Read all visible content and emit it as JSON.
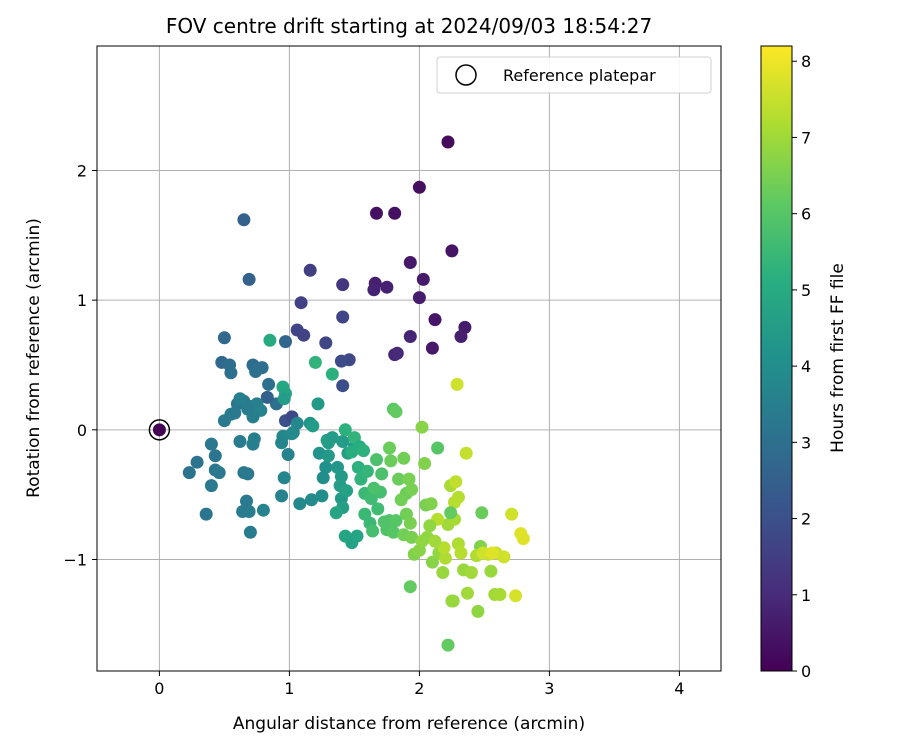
{
  "chart_data": {
    "type": "scatter",
    "title": "FOV centre drift starting at 2024/09/03 18:54:27",
    "xlabel": "Angular distance from reference (arcmin)",
    "ylabel": "Rotation from reference (arcmin)",
    "xlim": [
      -0.48,
      4.32
    ],
    "ylim": [
      -1.86,
      2.96
    ],
    "xticks": [
      0,
      1,
      2,
      3,
      4
    ],
    "yticks": [
      -1,
      0,
      1,
      2
    ],
    "grid": true,
    "legend": {
      "placement": "top-right",
      "entries": [
        "Reference platepar"
      ]
    },
    "reference_point": {
      "x": 0,
      "y": 0
    },
    "colorbar": {
      "label": "Hours from first FF file",
      "colormap": "viridis",
      "min": 0,
      "max": 8.2,
      "ticks": [
        0,
        1,
        2,
        3,
        4,
        5,
        6,
        7,
        8
      ]
    },
    "points": [
      [
        2.22,
        2.22,
        0.25
      ],
      [
        2.0,
        1.87,
        0.3
      ],
      [
        1.67,
        1.67,
        0.4
      ],
      [
        1.81,
        1.67,
        0.35
      ],
      [
        2.25,
        1.38,
        0.45
      ],
      [
        1.93,
        1.29,
        0.55
      ],
      [
        2.03,
        1.16,
        0.6
      ],
      [
        1.66,
        1.13,
        0.7
      ],
      [
        1.75,
        1.1,
        0.75
      ],
      [
        1.65,
        1.08,
        0.8
      ],
      [
        2.0,
        1.02,
        0.65
      ],
      [
        2.12,
        0.85,
        0.5
      ],
      [
        2.35,
        0.79,
        0.65
      ],
      [
        2.32,
        0.72,
        0.7
      ],
      [
        1.93,
        0.72,
        0.85
      ],
      [
        2.1,
        0.63,
        0.55
      ],
      [
        1.81,
        0.58,
        0.9
      ],
      [
        1.83,
        0.59,
        0.95
      ],
      [
        1.41,
        1.12,
        1.3
      ],
      [
        1.16,
        1.23,
        1.5
      ],
      [
        1.09,
        0.98,
        1.6
      ],
      [
        1.06,
        0.77,
        1.7
      ],
      [
        1.11,
        0.73,
        1.65
      ],
      [
        1.41,
        0.87,
        1.7
      ],
      [
        1.28,
        0.67,
        1.75
      ],
      [
        1.46,
        0.54,
        1.8
      ],
      [
        1.4,
        0.53,
        1.85
      ],
      [
        1.41,
        0.34,
        1.95
      ],
      [
        0.65,
        1.62,
        2.5
      ],
      [
        0.69,
        1.16,
        2.6
      ],
      [
        0.5,
        0.71,
        2.8
      ],
      [
        0.97,
        0.68,
        2.7
      ],
      [
        0.48,
        0.52,
        2.8
      ],
      [
        0.54,
        0.5,
        2.9
      ],
      [
        0.72,
        0.5,
        2.9
      ],
      [
        0.79,
        0.48,
        2.95
      ],
      [
        0.55,
        0.44,
        3.0
      ],
      [
        0.74,
        0.45,
        3.0
      ],
      [
        0.84,
        0.35,
        3.0
      ],
      [
        0.9,
        0.2,
        3.0
      ],
      [
        0.83,
        0.25,
        2.5
      ],
      [
        0.6,
        0.2,
        3.2
      ],
      [
        0.65,
        0.22,
        3.3
      ],
      [
        0.7,
        0.18,
        3.4
      ],
      [
        0.75,
        0.2,
        3.5
      ],
      [
        0.78,
        0.15,
        3.6
      ],
      [
        0.72,
        0.1,
        3.5
      ],
      [
        0.55,
        0.12,
        3.4
      ],
      [
        0.5,
        0.07,
        3.3
      ],
      [
        0.58,
        0.13,
        3.3
      ],
      [
        0.68,
        0.16,
        3.4
      ],
      [
        0.62,
        0.24,
        3.5
      ],
      [
        0.97,
        0.07,
        2.0
      ],
      [
        1.02,
        0.1,
        1.8
      ],
      [
        0.95,
        0.33,
        4.9
      ],
      [
        0.97,
        0.28,
        4.8
      ],
      [
        0.96,
        0.24,
        4.5
      ],
      [
        0.85,
        0.69,
        5.0
      ],
      [
        1.2,
        0.52,
        5.3
      ],
      [
        1.33,
        0.43,
        5.2
      ],
      [
        1.22,
        0.2,
        4.4
      ],
      [
        1.16,
        0.05,
        4.2
      ],
      [
        1.18,
        0.03,
        4.5
      ],
      [
        1.06,
        0.05,
        3.8
      ],
      [
        1.03,
        -0.02,
        3.7
      ],
      [
        1.02,
        -0.03,
        3.9
      ],
      [
        0.95,
        -0.05,
        3.8
      ],
      [
        0.94,
        -0.1,
        3.7
      ],
      [
        0.99,
        -0.19,
        3.6
      ],
      [
        0.96,
        -0.37,
        3.7
      ],
      [
        0.94,
        -0.51,
        3.6
      ],
      [
        0.73,
        -0.07,
        3.5
      ],
      [
        0.72,
        -0.11,
        3.5
      ],
      [
        0.62,
        -0.09,
        3.4
      ],
      [
        0.4,
        -0.11,
        3.3
      ],
      [
        0.43,
        -0.2,
        3.2
      ],
      [
        0.43,
        -0.31,
        3.2
      ],
      [
        0.46,
        -0.33,
        3.3
      ],
      [
        0.4,
        -0.43,
        3.3
      ],
      [
        0.23,
        -0.33,
        3.1
      ],
      [
        0.29,
        -0.25,
        3.1
      ],
      [
        0.36,
        -0.65,
        3.2
      ],
      [
        0.65,
        -0.33,
        3.3
      ],
      [
        0.68,
        -0.34,
        3.3
      ],
      [
        0.67,
        -0.55,
        3.3
      ],
      [
        0.64,
        -0.63,
        3.4
      ],
      [
        0.69,
        -0.63,
        3.4
      ],
      [
        0.7,
        -0.79,
        3.4
      ],
      [
        0.8,
        -0.62,
        3.6
      ],
      [
        1.08,
        -0.57,
        3.8
      ],
      [
        1.17,
        -0.54,
        3.9
      ],
      [
        1.25,
        -0.51,
        4.0
      ],
      [
        1.28,
        -0.29,
        4.1
      ],
      [
        1.26,
        -0.37,
        4.0
      ],
      [
        1.23,
        -0.18,
        4.2
      ],
      [
        1.3,
        -0.2,
        4.4
      ],
      [
        1.3,
        -0.1,
        4.5
      ],
      [
        1.29,
        -0.08,
        4.6
      ],
      [
        1.33,
        -0.06,
        4.5
      ],
      [
        1.37,
        -0.29,
        4.3
      ],
      [
        1.4,
        -0.36,
        4.4
      ],
      [
        1.39,
        -0.43,
        4.5
      ],
      [
        1.4,
        -0.53,
        4.4
      ],
      [
        1.41,
        -0.6,
        4.6
      ],
      [
        1.44,
        -0.47,
        4.7
      ],
      [
        1.36,
        -0.64,
        4.8
      ],
      [
        1.43,
        -0.82,
        4.8
      ],
      [
        1.48,
        -0.87,
        4.7
      ],
      [
        1.52,
        -0.82,
        4.8
      ],
      [
        1.45,
        -0.18,
        4.6
      ],
      [
        1.5,
        -0.13,
        4.5
      ],
      [
        1.41,
        -0.09,
        4.5
      ],
      [
        1.43,
        -0.0,
        5.2
      ],
      [
        1.5,
        -0.06,
        5.3
      ],
      [
        1.54,
        -0.13,
        5.1
      ],
      [
        1.48,
        -0.17,
        5.1
      ],
      [
        1.57,
        -0.16,
        5.2
      ],
      [
        1.53,
        -0.29,
        5.2
      ],
      [
        1.55,
        -0.38,
        5.3
      ],
      [
        1.6,
        -0.32,
        5.4
      ],
      [
        1.58,
        -0.49,
        5.5
      ],
      [
        1.63,
        -0.53,
        5.6
      ],
      [
        1.58,
        -0.65,
        5.5
      ],
      [
        1.62,
        -0.72,
        5.5
      ],
      [
        1.64,
        -0.78,
        5.7
      ],
      [
        1.68,
        -0.61,
        5.6
      ],
      [
        1.7,
        -0.48,
        5.7
      ],
      [
        1.65,
        -0.45,
        5.8
      ],
      [
        1.71,
        -0.34,
        5.8
      ],
      [
        1.67,
        -0.23,
        5.8
      ],
      [
        1.73,
        -0.71,
        5.9
      ],
      [
        1.75,
        -0.77,
        5.9
      ],
      [
        1.77,
        -0.7,
        5.9
      ],
      [
        1.8,
        -0.79,
        6.0
      ],
      [
        1.82,
        -0.7,
        6.0
      ],
      [
        1.8,
        0.16,
        6.1
      ],
      [
        1.82,
        0.14,
        6.2
      ],
      [
        1.77,
        -0.14,
        6.3
      ],
      [
        1.78,
        -0.24,
        6.3
      ],
      [
        1.84,
        -0.38,
        6.3
      ],
      [
        1.88,
        -0.22,
        6.4
      ],
      [
        1.9,
        -0.49,
        6.3
      ],
      [
        1.86,
        -0.54,
        6.4
      ],
      [
        1.92,
        -0.38,
        6.5
      ],
      [
        1.94,
        -0.46,
        6.5
      ],
      [
        1.9,
        -0.65,
        6.4
      ],
      [
        1.93,
        -0.72,
        6.5
      ],
      [
        1.88,
        -0.81,
        6.4
      ],
      [
        1.94,
        -0.83,
        6.5
      ],
      [
        1.96,
        -0.96,
        6.6
      ],
      [
        2.0,
        -0.93,
        6.7
      ],
      [
        2.02,
        -0.86,
        6.8
      ],
      [
        2.06,
        -0.83,
        6.8
      ],
      [
        2.05,
        -0.58,
        6.5
      ],
      [
        2.09,
        -0.57,
        6.6
      ],
      [
        2.1,
        -1.02,
        6.7
      ],
      [
        2.15,
        -0.95,
        6.8
      ],
      [
        2.18,
        -1.1,
        6.9
      ],
      [
        1.93,
        -1.21,
        6.2
      ],
      [
        2.22,
        -1.66,
        6.2
      ],
      [
        2.25,
        -1.32,
        6.9
      ],
      [
        2.26,
        -1.32,
        6.9
      ],
      [
        2.34,
        -1.08,
        6.9
      ],
      [
        2.4,
        -1.1,
        7.0
      ],
      [
        2.37,
        -1.26,
        7.0
      ],
      [
        2.45,
        -1.4,
        6.8
      ],
      [
        2.48,
        -0.64,
        6.3
      ],
      [
        2.47,
        -0.9,
        6.6
      ],
      [
        2.55,
        -1.09,
        6.9
      ],
      [
        2.58,
        -1.27,
        7.0
      ],
      [
        2.62,
        -1.27,
        7.1
      ],
      [
        2.53,
        -0.96,
        7.4
      ],
      [
        2.59,
        -0.95,
        7.5
      ],
      [
        2.65,
        -0.98,
        7.6
      ],
      [
        2.71,
        -0.65,
        7.6
      ],
      [
        2.74,
        -1.28,
        7.7
      ],
      [
        2.78,
        -0.8,
        7.8
      ],
      [
        2.8,
        -0.84,
        7.8
      ],
      [
        2.2,
        -0.99,
        7.2
      ],
      [
        2.19,
        -0.91,
        7.3
      ],
      [
        2.22,
        -0.73,
        7.0
      ],
      [
        2.27,
        -0.69,
        7.1
      ],
      [
        2.24,
        -0.43,
        7.1
      ],
      [
        2.27,
        -0.56,
        7.3
      ],
      [
        2.3,
        -0.52,
        7.3
      ],
      [
        2.28,
        -0.4,
        7.4
      ],
      [
        2.3,
        -0.88,
        7.2
      ],
      [
        2.32,
        -0.95,
        7.3
      ],
      [
        2.36,
        -0.18,
        7.5
      ],
      [
        2.29,
        0.35,
        7.6
      ],
      [
        2.14,
        -0.14,
        6.0
      ],
      [
        2.14,
        -0.69,
        7.3
      ],
      [
        2.02,
        0.02,
        6.7
      ],
      [
        2.04,
        -0.26,
        6.6
      ],
      [
        2.08,
        -0.74,
        6.8
      ],
      [
        2.12,
        -0.86,
        7.0
      ],
      [
        2.24,
        -0.64,
        6.2
      ],
      [
        2.44,
        -0.97,
        7.2
      ],
      [
        2.49,
        -0.95,
        7.6
      ],
      [
        2.56,
        -0.95,
        7.8
      ]
    ]
  }
}
